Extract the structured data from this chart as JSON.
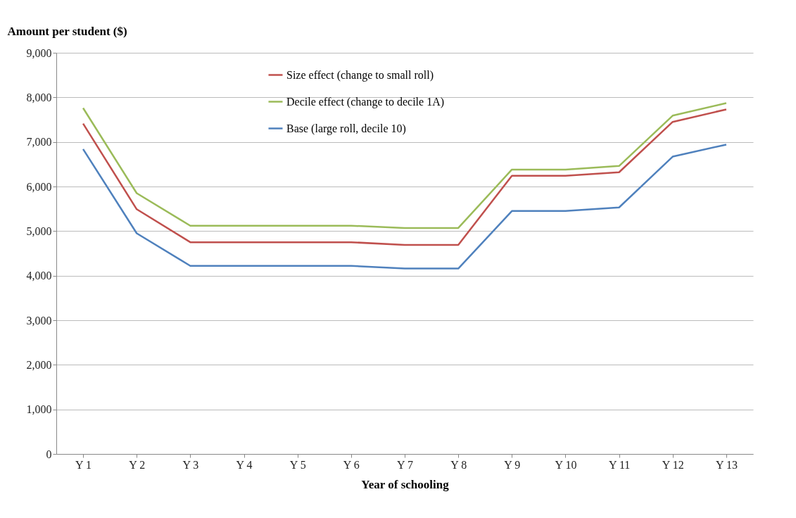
{
  "chart_data": {
    "type": "line",
    "xlabel": "Year of schooling",
    "ylabel": "Amount per student ($)",
    "categories": [
      "Y 1",
      "Y 2",
      "Y 3",
      "Y 4",
      "Y 5",
      "Y 6",
      "Y 7",
      "Y 8",
      "Y 9",
      "Y 10",
      "Y 11",
      "Y 12",
      "Y 13"
    ],
    "series": [
      {
        "name": "Size effect (change to small roll)",
        "color": "#c0504d",
        "values": [
          7410,
          5490,
          4750,
          4750,
          4750,
          4750,
          4690,
          4690,
          6240,
          6240,
          6320,
          7450,
          7730
        ]
      },
      {
        "name": "Decile effect (change to decile 1A)",
        "color": "#9bbb59",
        "values": [
          7760,
          5850,
          5120,
          5120,
          5120,
          5120,
          5070,
          5070,
          6380,
          6380,
          6460,
          7590,
          7870
        ]
      },
      {
        "name": "Base (large roll, decile 10)",
        "color": "#4f81bd",
        "values": [
          6840,
          4950,
          4220,
          4220,
          4220,
          4220,
          4160,
          4160,
          5450,
          5450,
          5530,
          6670,
          6940
        ]
      }
    ],
    "ylim": [
      0,
      9000
    ],
    "yticks": [
      0,
      {
        "value": 1000,
        "label": "1,000"
      },
      {
        "value": 2000,
        "label": "2,000"
      },
      {
        "value": 3000,
        "label": "3,000"
      },
      {
        "value": 4000,
        "label": "4,000"
      },
      {
        "value": 5000,
        "label": "5,000"
      },
      {
        "value": 6000,
        "label": "6,000"
      },
      {
        "value": 7000,
        "label": "7,000"
      },
      {
        "value": 8000,
        "label": "8,000"
      },
      {
        "value": 9000,
        "label": "9,000"
      }
    ],
    "grid": "y",
    "legend": "top",
    "marker": "none",
    "line_style": "solid"
  }
}
